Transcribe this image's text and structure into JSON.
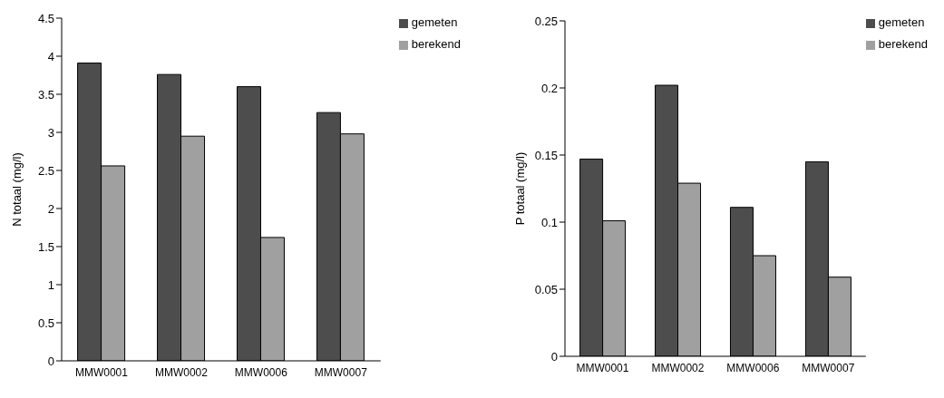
{
  "chart_data": [
    {
      "type": "bar",
      "ylabel": "N totaal (mg/l)",
      "categories": [
        "MMW0001",
        "MMW0002",
        "MMW0006",
        "MMW0007"
      ],
      "series": [
        {
          "name": "gemeten",
          "color": "#4d4d4d",
          "values": [
            3.91,
            3.76,
            3.6,
            3.26
          ]
        },
        {
          "name": "berekend",
          "color": "#a0a0a0",
          "values": [
            2.56,
            2.95,
            1.62,
            2.98
          ]
        }
      ],
      "ylim": [
        0,
        4.5
      ],
      "yticks": [
        0,
        0.5,
        1,
        1.5,
        2,
        2.5,
        3,
        3.5,
        4,
        4.5
      ],
      "grid": false,
      "legend": "top right"
    },
    {
      "type": "bar",
      "ylabel": "P totaal (mg/l)",
      "categories": [
        "MMW0001",
        "MMW0002",
        "MMW0006",
        "MMW0007"
      ],
      "series": [
        {
          "name": "gemeten",
          "color": "#4d4d4d",
          "values": [
            0.147,
            0.202,
            0.111,
            0.145
          ]
        },
        {
          "name": "berekend",
          "color": "#a0a0a0",
          "values": [
            0.101,
            0.129,
            0.075,
            0.059
          ]
        }
      ],
      "ylim": [
        0,
        0.25
      ],
      "yticks": [
        0,
        0.05,
        0.1,
        0.15,
        0.2,
        0.25
      ],
      "grid": false,
      "legend": "top right"
    }
  ]
}
